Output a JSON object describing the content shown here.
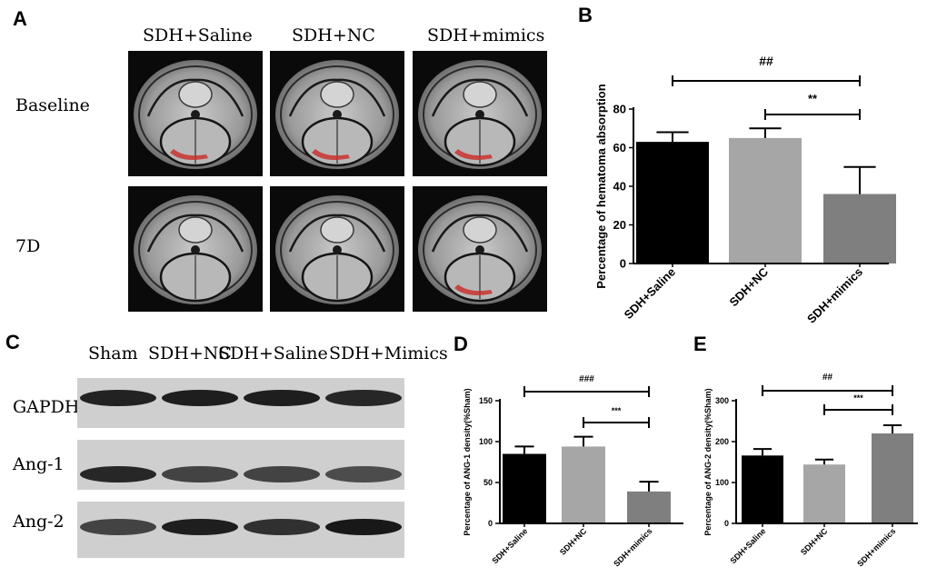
{
  "panels": {
    "A": {
      "letter": "A",
      "columns": [
        "SDH+Saline",
        "SDH+NC",
        "SDH+mimics"
      ],
      "rows": [
        "Baseline",
        "7D"
      ],
      "hematoma_marked": [
        [
          true,
          true,
          true
        ],
        [
          false,
          false,
          true
        ]
      ]
    },
    "C": {
      "letter": "C",
      "lanes": [
        "Sham",
        "SDH+NC",
        "SDH+Saline",
        "SDH+Mimics"
      ],
      "bands": [
        "GAPDH",
        "Ang-1",
        "Ang-2"
      ]
    }
  },
  "colors": {
    "black_bar": "#000000",
    "light_bar": "#a6a6a6",
    "gray_bar": "#7f7f7f",
    "hematoma": "#c8322e"
  },
  "chart_data": [
    {
      "id": "B",
      "letter": "B",
      "type": "bar",
      "categories": [
        "SDH+Saline",
        "SDH+NC",
        "SDH+mimics"
      ],
      "values": [
        63,
        65,
        36
      ],
      "errors": [
        5,
        5,
        14
      ],
      "ylabel": "Percentage of hematoma absorption",
      "ylim": [
        0,
        80
      ],
      "yticks": [
        0,
        20,
        40,
        60,
        80
      ],
      "significance": [
        {
          "from": 0,
          "to": 2,
          "label": "##"
        },
        {
          "from": 1,
          "to": 2,
          "label": "**"
        }
      ]
    },
    {
      "id": "D",
      "letter": "D",
      "type": "bar",
      "categories": [
        "SDH+Saline",
        "SDH+NC",
        "SDH+mimics"
      ],
      "values": [
        85,
        94,
        39
      ],
      "errors": [
        9,
        12,
        12
      ],
      "ylabel": "Percentage of ANG-1 density(%Sham)",
      "ylim": [
        0,
        150
      ],
      "yticks": [
        0,
        50,
        100,
        150
      ],
      "significance": [
        {
          "from": 0,
          "to": 2,
          "label": "###"
        },
        {
          "from": 1,
          "to": 2,
          "label": "***"
        }
      ]
    },
    {
      "id": "E",
      "letter": "E",
      "type": "bar",
      "categories": [
        "SDH+Saline",
        "SDH+NC",
        "SDH+mimics"
      ],
      "values": [
        166,
        144,
        220
      ],
      "errors": [
        16,
        12,
        20
      ],
      "ylabel": "Percentage of ANG-2 density(%Sham)",
      "ylim": [
        0,
        300
      ],
      "yticks": [
        0,
        100,
        200,
        300
      ],
      "significance": [
        {
          "from": 0,
          "to": 2,
          "label": "##"
        },
        {
          "from": 1,
          "to": 2,
          "label": "***"
        }
      ]
    }
  ]
}
